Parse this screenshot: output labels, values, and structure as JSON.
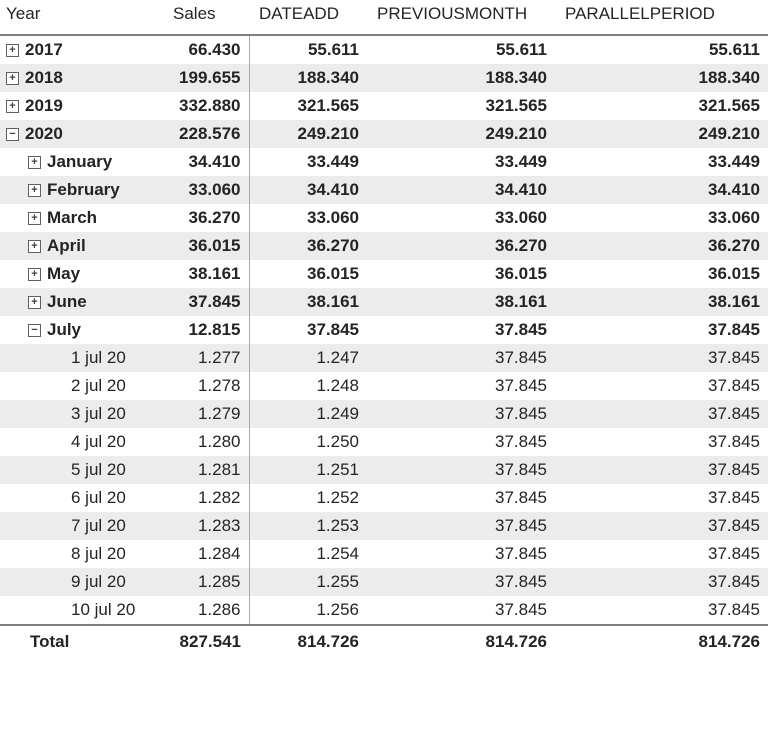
{
  "columns": {
    "year": "Year",
    "sales": "Sales",
    "dateadd": "DATEADD",
    "previousmonth": "PREVIOUSMONTH",
    "parallelperiod": "PARALLELPERIOD"
  },
  "colors": {
    "row_zebra": "#ececec",
    "header_border": "#808080",
    "sales_border": "#7eb3e2",
    "text": "#252423"
  },
  "rows": [
    {
      "level": 0,
      "icon": "plus",
      "bold": true,
      "zebra": false,
      "label": "2017",
      "sales": "66.430",
      "dateadd": "55.611",
      "pmon": "55.611",
      "ppar": "55.611"
    },
    {
      "level": 0,
      "icon": "plus",
      "bold": true,
      "zebra": true,
      "label": "2018",
      "sales": "199.655",
      "dateadd": "188.340",
      "pmon": "188.340",
      "ppar": "188.340"
    },
    {
      "level": 0,
      "icon": "plus",
      "bold": true,
      "zebra": false,
      "label": "2019",
      "sales": "332.880",
      "dateadd": "321.565",
      "pmon": "321.565",
      "ppar": "321.565"
    },
    {
      "level": 0,
      "icon": "minus",
      "bold": true,
      "zebra": true,
      "label": "2020",
      "sales": "228.576",
      "dateadd": "249.210",
      "pmon": "249.210",
      "ppar": "249.210"
    },
    {
      "level": 1,
      "icon": "plus",
      "bold": true,
      "zebra": false,
      "label": "January",
      "sales": "34.410",
      "dateadd": "33.449",
      "pmon": "33.449",
      "ppar": "33.449"
    },
    {
      "level": 1,
      "icon": "plus",
      "bold": true,
      "zebra": true,
      "label": "February",
      "sales": "33.060",
      "dateadd": "34.410",
      "pmon": "34.410",
      "ppar": "34.410"
    },
    {
      "level": 1,
      "icon": "plus",
      "bold": true,
      "zebra": false,
      "label": "March",
      "sales": "36.270",
      "dateadd": "33.060",
      "pmon": "33.060",
      "ppar": "33.060"
    },
    {
      "level": 1,
      "icon": "plus",
      "bold": true,
      "zebra": true,
      "label": "April",
      "sales": "36.015",
      "dateadd": "36.270",
      "pmon": "36.270",
      "ppar": "36.270"
    },
    {
      "level": 1,
      "icon": "plus",
      "bold": true,
      "zebra": false,
      "label": "May",
      "sales": "38.161",
      "dateadd": "36.015",
      "pmon": "36.015",
      "ppar": "36.015"
    },
    {
      "level": 1,
      "icon": "plus",
      "bold": true,
      "zebra": true,
      "label": "June",
      "sales": "37.845",
      "dateadd": "38.161",
      "pmon": "38.161",
      "ppar": "38.161"
    },
    {
      "level": 1,
      "icon": "minus",
      "bold": true,
      "zebra": false,
      "label": "July",
      "sales": "12.815",
      "dateadd": "37.845",
      "pmon": "37.845",
      "ppar": "37.845"
    },
    {
      "level": 2,
      "icon": "",
      "bold": false,
      "zebra": true,
      "label": "1 jul 20",
      "sales": "1.277",
      "dateadd": "1.247",
      "pmon": "37.845",
      "ppar": "37.845"
    },
    {
      "level": 2,
      "icon": "",
      "bold": false,
      "zebra": false,
      "label": "2 jul 20",
      "sales": "1.278",
      "dateadd": "1.248",
      "pmon": "37.845",
      "ppar": "37.845"
    },
    {
      "level": 2,
      "icon": "",
      "bold": false,
      "zebra": true,
      "label": "3 jul 20",
      "sales": "1.279",
      "dateadd": "1.249",
      "pmon": "37.845",
      "ppar": "37.845"
    },
    {
      "level": 2,
      "icon": "",
      "bold": false,
      "zebra": false,
      "label": "4 jul 20",
      "sales": "1.280",
      "dateadd": "1.250",
      "pmon": "37.845",
      "ppar": "37.845"
    },
    {
      "level": 2,
      "icon": "",
      "bold": false,
      "zebra": true,
      "label": "5 jul 20",
      "sales": "1.281",
      "dateadd": "1.251",
      "pmon": "37.845",
      "ppar": "37.845"
    },
    {
      "level": 2,
      "icon": "",
      "bold": false,
      "zebra": false,
      "label": "6 jul 20",
      "sales": "1.282",
      "dateadd": "1.252",
      "pmon": "37.845",
      "ppar": "37.845"
    },
    {
      "level": 2,
      "icon": "",
      "bold": false,
      "zebra": true,
      "label": "7 jul 20",
      "sales": "1.283",
      "dateadd": "1.253",
      "pmon": "37.845",
      "ppar": "37.845"
    },
    {
      "level": 2,
      "icon": "",
      "bold": false,
      "zebra": false,
      "label": "8 jul 20",
      "sales": "1.284",
      "dateadd": "1.254",
      "pmon": "37.845",
      "ppar": "37.845"
    },
    {
      "level": 2,
      "icon": "",
      "bold": false,
      "zebra": true,
      "label": "9 jul 20",
      "sales": "1.285",
      "dateadd": "1.255",
      "pmon": "37.845",
      "ppar": "37.845"
    },
    {
      "level": 2,
      "icon": "",
      "bold": false,
      "zebra": false,
      "label": "10 jul 20",
      "sales": "1.286",
      "dateadd": "1.256",
      "pmon": "37.845",
      "ppar": "37.845"
    }
  ],
  "total": {
    "label": "Total",
    "sales": "827.541",
    "dateadd": "814.726",
    "pmon": "814.726",
    "ppar": "814.726"
  }
}
